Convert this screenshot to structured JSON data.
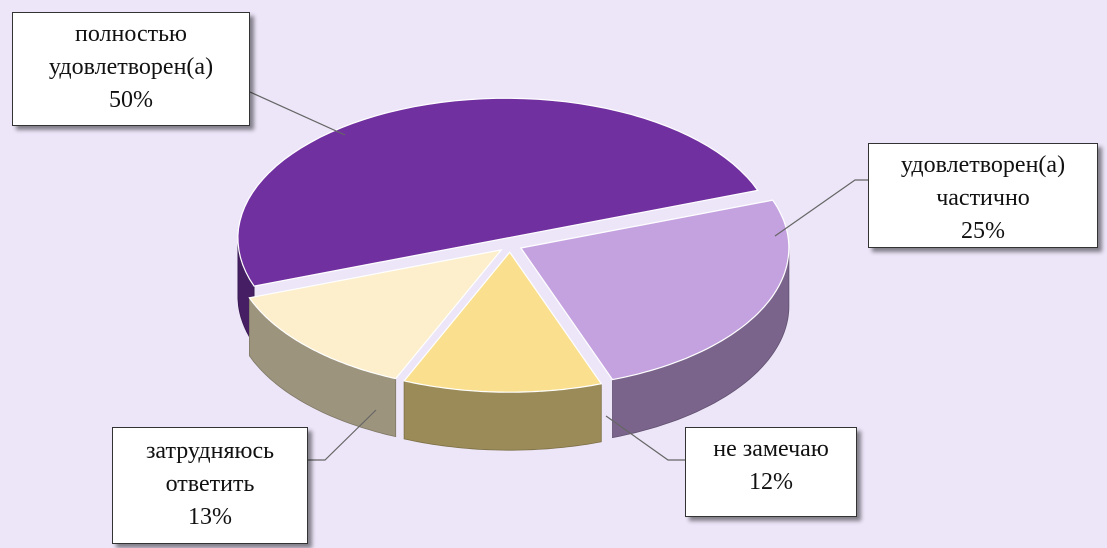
{
  "chart_data": {
    "type": "pie",
    "categories": [
      "полностью удовлетворен(а)",
      "удовлетворен(а) частично",
      "не замечаю",
      "затрудняюсь ответить"
    ],
    "values": [
      50,
      25,
      12,
      13
    ],
    "value_labels": [
      "50%",
      "25%",
      "12%",
      "13%"
    ],
    "colors": [
      "#7030a0",
      "#c4a2e0",
      "#fae08e",
      "#fdefcb"
    ]
  }
}
